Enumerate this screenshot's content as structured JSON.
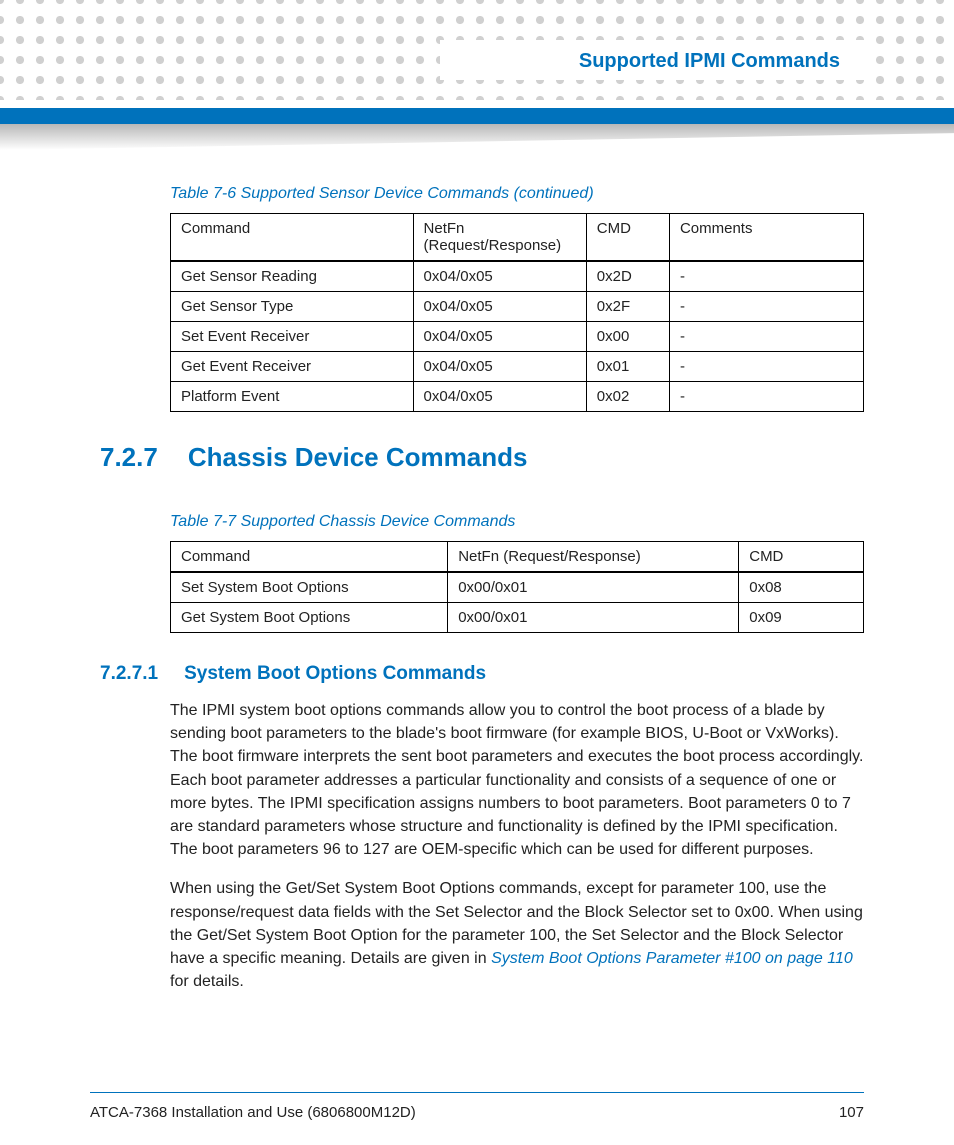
{
  "header": {
    "chapter_title": "Supported IPMI Commands"
  },
  "colors": {
    "brand_blue": "#0072bc",
    "dot_gray": "#d0d0d0",
    "text": "#222222",
    "background": "#ffffff"
  },
  "table1": {
    "caption": "Table 7-6 Supported Sensor Device Commands (continued)",
    "columns": [
      "Command",
      "NetFn (Request/Response)",
      "CMD",
      "Comments"
    ],
    "col_widths_pct": [
      35,
      25,
      12,
      28
    ],
    "rows": [
      [
        "Get Sensor Reading",
        "0x04/0x05",
        "0x2D",
        "-"
      ],
      [
        "Get Sensor Type",
        "0x04/0x05",
        "0x2F",
        "-"
      ],
      [
        "Set Event Receiver",
        "0x04/0x05",
        "0x00",
        "-"
      ],
      [
        "Get Event Receiver",
        "0x04/0x05",
        "0x01",
        "-"
      ],
      [
        "Platform Event",
        "0x04/0x05",
        "0x02",
        "-"
      ]
    ]
  },
  "section_727": {
    "number": "7.2.7",
    "title": "Chassis Device Commands"
  },
  "table2": {
    "caption": "Table 7-7 Supported Chassis Device Commands",
    "columns": [
      "Command",
      "NetFn (Request/Response)",
      "CMD"
    ],
    "col_widths_pct": [
      40,
      42,
      18
    ],
    "rows": [
      [
        "Set System Boot Options",
        "0x00/0x01",
        "0x08"
      ],
      [
        "Get System Boot Options",
        "0x00/0x01",
        "0x09"
      ]
    ]
  },
  "section_7271": {
    "number": "7.2.7.1",
    "title": "System Boot Options Commands"
  },
  "para1": "The IPMI system boot options commands allow you to control the boot process of a blade by sending boot parameters to the blade's boot firmware (for example BIOS, U-Boot or VxWorks). The boot firmware interprets the sent boot parameters and executes the boot process accordingly. Each boot parameter addresses a particular functionality and consists of a sequence of one or more bytes. The IPMI specification assigns numbers to boot parameters. Boot parameters 0 to 7 are standard parameters whose structure and functionality is defined by the IPMI specification. The boot parameters 96 to 127 are OEM-specific which can be used for different purposes.",
  "para2_pre": "When using the Get/Set System Boot Options commands, except for parameter 100, use the response/request data fields with the Set Selector and the Block Selector set to 0x00. When using the Get/Set System Boot Option for the parameter 100, the Set Selector and the Block Selector have a specific meaning. Details are given in ",
  "para2_link": "System Boot Options Parameter #100 on page 110",
  "para2_post": " for details.",
  "footer": {
    "doc_title": "ATCA-7368 Installation and Use (6806800M12D)",
    "page_number": "107"
  }
}
